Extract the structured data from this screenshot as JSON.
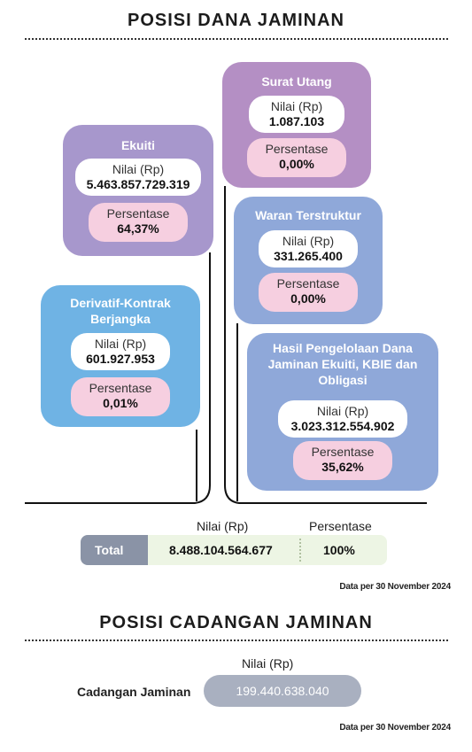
{
  "dana": {
    "title": "POSISI DANA JAMINAN",
    "cards": {
      "ekuiti": {
        "title": "Ekuiti",
        "nilai_label": "Nilai (Rp)",
        "nilai": "5.463.857.729.319",
        "persen_label": "Persentase",
        "persen": "64,37%"
      },
      "surat_utang": {
        "title": "Surat Utang",
        "nilai_label": "Nilai (Rp)",
        "nilai": "1.087.103",
        "persen_label": "Persentase",
        "persen": "0,00%"
      },
      "waran": {
        "title": "Waran Terstruktur",
        "nilai_label": "Nilai (Rp)",
        "nilai": "331.265.400",
        "persen_label": "Persentase",
        "persen": "0,00%"
      },
      "derivatif": {
        "title_line1": "Derivatif-Kontrak",
        "title_line2": "Berjangka",
        "nilai_label": "Nilai (Rp)",
        "nilai": "601.927.953",
        "persen_label": "Persentase",
        "persen": "0,01%"
      },
      "hasil": {
        "title_line1": "Hasil Pengelolaan Dana",
        "title_line2": "Jaminan Ekuiti, KBIE dan",
        "title_line3": "Obligasi",
        "nilai_label": "Nilai (Rp)",
        "nilai": "3.023.312.554.902",
        "persen_label": "Persentase",
        "persen": "35,62%"
      }
    },
    "total": {
      "header_nilai": "Nilai (Rp)",
      "header_persen": "Persentase",
      "label": "Total",
      "nilai": "8.488.104.564.677",
      "persen": "100%"
    },
    "date_note": "Data per 30 November 2024"
  },
  "cadangan": {
    "title": "POSISI CADANGAN JAMINAN",
    "header_nilai": "Nilai (Rp)",
    "label": "Cadangan Jaminan",
    "nilai": "199.440.638.040",
    "date_note": "Data per 30 November 2024"
  },
  "colors": {
    "ekuiti": "#a797cc",
    "surat_utang": "#b48fc4",
    "waran": "#8fa8d9",
    "derivatif": "#6fb3e4",
    "hasil": "#8fa8d9",
    "total_label_bg": "#8a93a6",
    "total_value_bg": "#edf5e4",
    "cadangan_bg": "#a9b0c0"
  }
}
